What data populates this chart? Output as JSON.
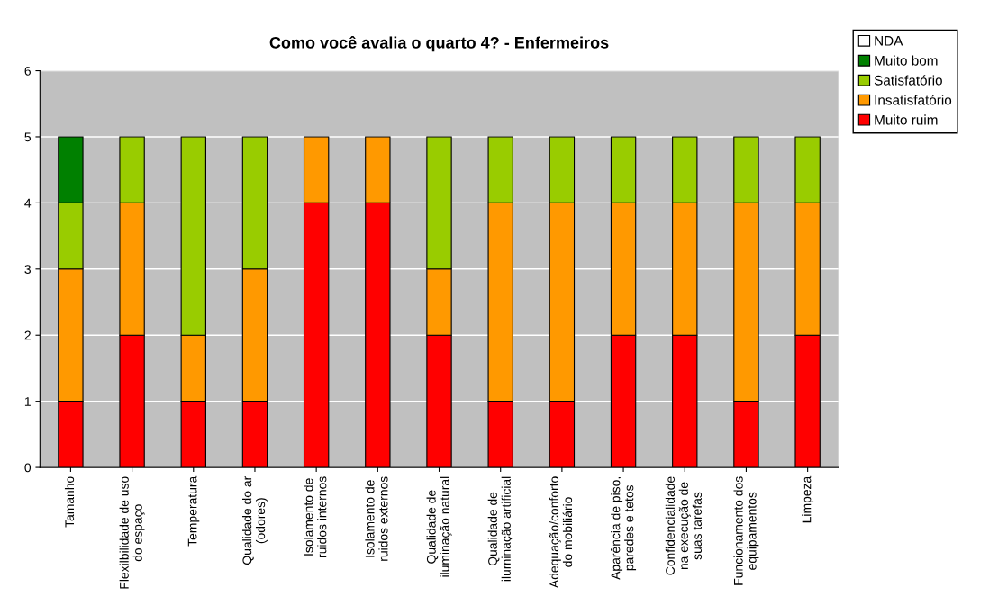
{
  "chart_data": {
    "type": "bar",
    "stacked": true,
    "title": "Como você avalia o quarto 4? - Enfermeiros",
    "categories": [
      "Tamanho",
      "Flexilbilidade de uso\ndo espaço",
      "Temperatura",
      "Qualidade do ar\n(odores)",
      "Isolamento de\nruidos internos",
      "Isolamento de\nruidos externos",
      "Qualidade de\niluminação natural",
      "Qualidade de\niluminação artificial",
      "Adequação/conforto\ndo mobiliário",
      "Aparência de piso,\nparedes e tetos",
      "Confidencialidade\nna execução de\nsuas tarefas",
      "Funcionamento dos\nequipamentos",
      "Limpeza"
    ],
    "series": [
      {
        "name": "Muito ruim",
        "color": "#ff0000",
        "values": [
          1,
          2,
          1,
          1,
          4,
          4,
          2,
          1,
          1,
          2,
          2,
          1,
          2
        ]
      },
      {
        "name": "Insatisfatório",
        "color": "#ff9900",
        "values": [
          2,
          2,
          1,
          2,
          1,
          1,
          1,
          3,
          3,
          2,
          2,
          3,
          2
        ]
      },
      {
        "name": "Satisfatório",
        "color": "#99cc00",
        "values": [
          1,
          1,
          3,
          2,
          0,
          0,
          2,
          1,
          1,
          1,
          1,
          1,
          1
        ]
      },
      {
        "name": "Muito bom",
        "color": "#008000",
        "values": [
          1,
          0,
          0,
          0,
          0,
          0,
          0,
          0,
          0,
          0,
          0,
          0,
          0
        ]
      },
      {
        "name": "NDA",
        "color": "#ffffff",
        "values": [
          0,
          0,
          0,
          0,
          0,
          0,
          0,
          0,
          0,
          0,
          0,
          0,
          0
        ]
      }
    ],
    "ylim": [
      0,
      6
    ],
    "yticks": [
      0,
      1,
      2,
      3,
      4,
      5,
      6
    ],
    "grid": "y",
    "legend": "top right"
  }
}
